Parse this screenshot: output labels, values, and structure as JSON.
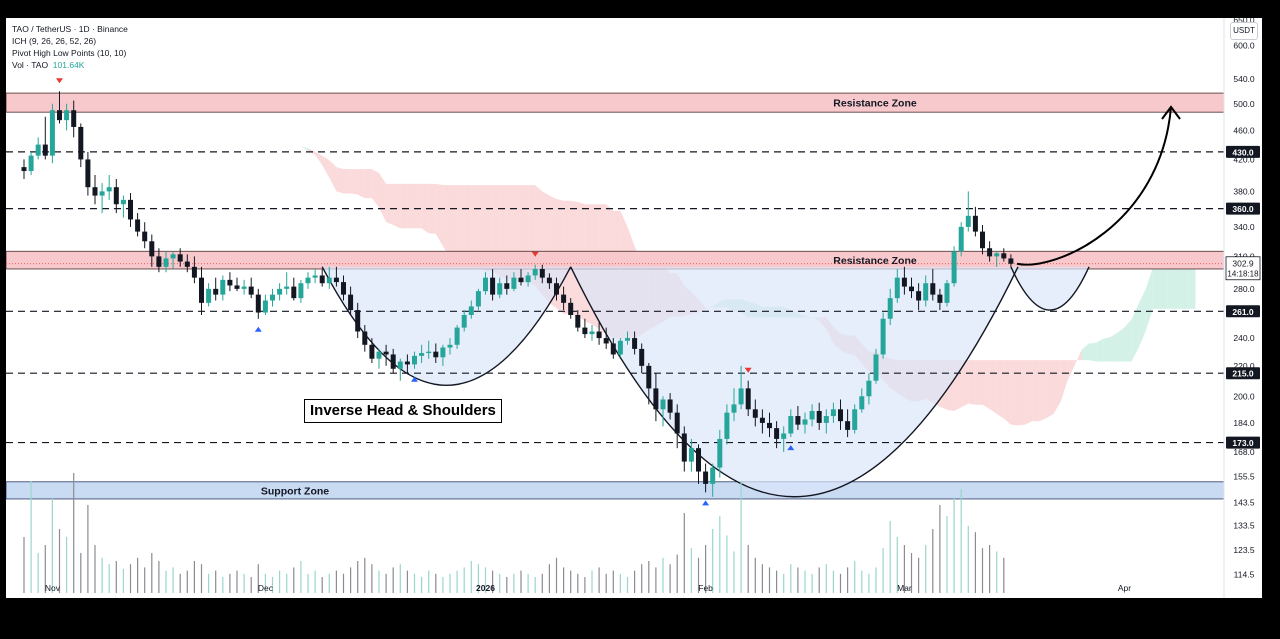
{
  "legend": {
    "line1": "TAO / TetherUS · 1D · Binance",
    "line2": "ICH (9, 26, 26, 52, 26)",
    "line3": "Pivot High Low Points (10, 10)",
    "vol_label": "Vol · TAO",
    "vol_value": "101.64K"
  },
  "currency": "USDT",
  "price_marker": {
    "value": "302.9",
    "countdown": "14:18:18"
  },
  "annotation_label": "Inverse Head & Shoulders",
  "colors": {
    "bull": "#26a69a",
    "bear": "#131722",
    "resistance_fill": "#f8c9cc",
    "support_fill": "#c9daf3",
    "pattern_fill": "#dbe6fa",
    "cloud_bull": "#cdeee4",
    "cloud_bear": "#f9d3d5",
    "pivot_up": "#2962ff",
    "pivot_down": "#e53935"
  },
  "chart_data": {
    "type": "candlestick",
    "y_scale": "log",
    "ylim": [
      108,
      650
    ],
    "y_ticks": [
      650.0,
      600.0,
      540.0,
      500.0,
      460.0,
      420.0,
      380.0,
      340.0,
      310.0,
      280.0,
      240.0,
      220.0,
      200.0,
      184.0,
      168.0,
      155.5,
      143.5,
      133.5,
      123.5,
      114.5
    ],
    "x_labels": [
      {
        "label": "Nov",
        "day": 4
      },
      {
        "label": "Dec",
        "day": 34
      },
      {
        "label": "2026",
        "day": 65
      },
      {
        "label": "Feb",
        "day": 96
      },
      {
        "label": "Mar",
        "day": 124
      },
      {
        "label": "Apr",
        "day": 155
      }
    ],
    "zones": [
      {
        "label": "Resistance Zone",
        "low": 487,
        "high": 517,
        "kind": "resistance"
      },
      {
        "label": "Resistance Zone",
        "low": 298,
        "high": 315,
        "kind": "resistance"
      },
      {
        "label": "Support Zone",
        "low": 145,
        "high": 153,
        "kind": "support"
      }
    ],
    "levels": [
      430.0,
      360.0,
      261.0,
      215.0,
      173.0
    ],
    "level_labels": [
      "430.0",
      "360.0",
      "261.0",
      "215.0",
      "173.0"
    ],
    "price_line": 302.9,
    "ohlc": [
      [
        410,
        420,
        395,
        405
      ],
      [
        405,
        430,
        400,
        425
      ],
      [
        425,
        450,
        420,
        440
      ],
      [
        440,
        480,
        420,
        425
      ],
      [
        425,
        500,
        415,
        490
      ],
      [
        490,
        520,
        470,
        475
      ],
      [
        475,
        500,
        460,
        490
      ],
      [
        490,
        505,
        450,
        465
      ],
      [
        465,
        470,
        410,
        420
      ],
      [
        420,
        430,
        375,
        385
      ],
      [
        385,
        400,
        365,
        375
      ],
      [
        375,
        390,
        355,
        380
      ],
      [
        380,
        400,
        370,
        385
      ],
      [
        385,
        395,
        355,
        365
      ],
      [
        365,
        375,
        350,
        370
      ],
      [
        370,
        378,
        340,
        348
      ],
      [
        348,
        355,
        330,
        335
      ],
      [
        335,
        345,
        318,
        325
      ],
      [
        325,
        332,
        300,
        310
      ],
      [
        310,
        318,
        295,
        300
      ],
      [
        300,
        315,
        295,
        308
      ],
      [
        308,
        315,
        298,
        312
      ],
      [
        312,
        318,
        300,
        305
      ],
      [
        305,
        312,
        295,
        300
      ],
      [
        300,
        310,
        285,
        290
      ],
      [
        290,
        300,
        258,
        268
      ],
      [
        268,
        285,
        265,
        280
      ],
      [
        280,
        290,
        270,
        275
      ],
      [
        275,
        292,
        270,
        288
      ],
      [
        288,
        295,
        278,
        283
      ],
      [
        283,
        290,
        278,
        280
      ],
      [
        280,
        288,
        275,
        282
      ],
      [
        282,
        290,
        272,
        275
      ],
      [
        275,
        280,
        255,
        260
      ],
      [
        260,
        275,
        258,
        270
      ],
      [
        270,
        280,
        265,
        275
      ],
      [
        275,
        285,
        270,
        280
      ],
      [
        280,
        295,
        275,
        282
      ],
      [
        282,
        290,
        270,
        272
      ],
      [
        272,
        288,
        268,
        285
      ],
      [
        285,
        295,
        280,
        290
      ],
      [
        290,
        298,
        285,
        292
      ],
      [
        292,
        298,
        282,
        285
      ],
      [
        285,
        300,
        280,
        290
      ],
      [
        290,
        300,
        282,
        286
      ],
      [
        286,
        292,
        270,
        275
      ],
      [
        275,
        282,
        258,
        262
      ],
      [
        262,
        268,
        240,
        245
      ],
      [
        245,
        250,
        230,
        235
      ],
      [
        235,
        240,
        222,
        225
      ],
      [
        225,
        232,
        218,
        230
      ],
      [
        230,
        235,
        220,
        228
      ],
      [
        228,
        232,
        215,
        218
      ],
      [
        218,
        225,
        210,
        223
      ],
      [
        223,
        228,
        215,
        221
      ],
      [
        221,
        230,
        218,
        227
      ],
      [
        227,
        235,
        222,
        229
      ],
      [
        229,
        238,
        225,
        230
      ],
      [
        230,
        236,
        222,
        226
      ],
      [
        226,
        235,
        220,
        233
      ],
      [
        233,
        240,
        228,
        235
      ],
      [
        235,
        250,
        232,
        248
      ],
      [
        248,
        262,
        245,
        258
      ],
      [
        258,
        270,
        255,
        265
      ],
      [
        265,
        280,
        262,
        278
      ],
      [
        278,
        295,
        275,
        290
      ],
      [
        290,
        298,
        270,
        275
      ],
      [
        275,
        290,
        272,
        285
      ],
      [
        285,
        292,
        275,
        280
      ],
      [
        280,
        295,
        278,
        290
      ],
      [
        290,
        298,
        283,
        286
      ],
      [
        286,
        295,
        282,
        292
      ],
      [
        292,
        302,
        288,
        298
      ],
      [
        298,
        302,
        285,
        290
      ],
      [
        290,
        294,
        280,
        285
      ],
      [
        285,
        290,
        270,
        275
      ],
      [
        275,
        282,
        262,
        268
      ],
      [
        268,
        272,
        255,
        258
      ],
      [
        258,
        262,
        245,
        248
      ],
      [
        248,
        255,
        240,
        243
      ],
      [
        243,
        250,
        238,
        245
      ],
      [
        245,
        252,
        235,
        240
      ],
      [
        240,
        248,
        232,
        236
      ],
      [
        236,
        240,
        225,
        228
      ],
      [
        228,
        240,
        226,
        238
      ],
      [
        238,
        245,
        235,
        240
      ],
      [
        240,
        245,
        228,
        232
      ],
      [
        232,
        236,
        215,
        220
      ],
      [
        220,
        222,
        195,
        205
      ],
      [
        205,
        215,
        185,
        192
      ],
      [
        192,
        200,
        182,
        198
      ],
      [
        198,
        202,
        186,
        190
      ],
      [
        190,
        195,
        170,
        178
      ],
      [
        178,
        182,
        158,
        163
      ],
      [
        163,
        175,
        158,
        170
      ],
      [
        170,
        172,
        152,
        158
      ],
      [
        158,
        162,
        148,
        152
      ],
      [
        152,
        162,
        146,
        160
      ],
      [
        160,
        180,
        155,
        175
      ],
      [
        175,
        195,
        172,
        190
      ],
      [
        190,
        205,
        185,
        195
      ],
      [
        195,
        220,
        192,
        205
      ],
      [
        205,
        210,
        188,
        192
      ],
      [
        192,
        198,
        182,
        187
      ],
      [
        187,
        192,
        178,
        184
      ],
      [
        184,
        190,
        176,
        181
      ],
      [
        181,
        185,
        170,
        175
      ],
      [
        175,
        182,
        168,
        178
      ],
      [
        178,
        192,
        176,
        188
      ],
      [
        188,
        194,
        180,
        183
      ],
      [
        183,
        190,
        178,
        186
      ],
      [
        186,
        195,
        182,
        191
      ],
      [
        191,
        196,
        180,
        184
      ],
      [
        184,
        192,
        178,
        188
      ],
      [
        188,
        196,
        184,
        192
      ],
      [
        192,
        198,
        180,
        185
      ],
      [
        185,
        192,
        176,
        180
      ],
      [
        180,
        195,
        178,
        192
      ],
      [
        192,
        205,
        190,
        200
      ],
      [
        200,
        215,
        195,
        210
      ],
      [
        210,
        232,
        208,
        228
      ],
      [
        228,
        260,
        225,
        255
      ],
      [
        255,
        280,
        250,
        272
      ],
      [
        272,
        298,
        268,
        290
      ],
      [
        290,
        300,
        275,
        282
      ],
      [
        282,
        290,
        272,
        278
      ],
      [
        278,
        285,
        262,
        270
      ],
      [
        270,
        292,
        265,
        285
      ],
      [
        285,
        298,
        270,
        275
      ],
      [
        275,
        280,
        262,
        268
      ],
      [
        268,
        288,
        265,
        285
      ],
      [
        285,
        320,
        282,
        315
      ],
      [
        315,
        345,
        310,
        340
      ],
      [
        340,
        380,
        335,
        352
      ],
      [
        352,
        362,
        330,
        335
      ],
      [
        335,
        342,
        312,
        318
      ],
      [
        318,
        325,
        305,
        310
      ],
      [
        310,
        315,
        300,
        313
      ],
      [
        313,
        318,
        305,
        308
      ],
      [
        308,
        312,
        300,
        302.9
      ]
    ],
    "volume": [
      35,
      70,
      25,
      30,
      60,
      40,
      35,
      75,
      25,
      55,
      30,
      22,
      18,
      20,
      15,
      18,
      22,
      16,
      25,
      20,
      14,
      16,
      12,
      14,
      20,
      18,
      12,
      14,
      10,
      12,
      14,
      12,
      10,
      18,
      12,
      10,
      14,
      12,
      16,
      20,
      12,
      14,
      10,
      12,
      14,
      12,
      16,
      20,
      22,
      18,
      14,
      12,
      16,
      18,
      14,
      12,
      10,
      14,
      12,
      10,
      12,
      14,
      16,
      20,
      18,
      16,
      14,
      12,
      10,
      12,
      14,
      12,
      10,
      12,
      18,
      22,
      16,
      14,
      12,
      10,
      14,
      16,
      12,
      14,
      12,
      10,
      14,
      18,
      20,
      16,
      22,
      18,
      24,
      50,
      28,
      22,
      30,
      40,
      48,
      36,
      26,
      70,
      30,
      22,
      18,
      16,
      14,
      12,
      18,
      16,
      14,
      12,
      16,
      18,
      14,
      12,
      16,
      20,
      14,
      12,
      16,
      28,
      45,
      35,
      30,
      25,
      22,
      30,
      40,
      55,
      48,
      60,
      65,
      42,
      38,
      28,
      30,
      26,
      22
    ],
    "pivots": [
      {
        "index": 5,
        "kind": "high"
      },
      {
        "index": 33,
        "kind": "low"
      },
      {
        "index": 55,
        "kind": "low"
      },
      {
        "index": 72,
        "kind": "high"
      },
      {
        "index": 96,
        "kind": "low"
      },
      {
        "index": 102,
        "kind": "high"
      },
      {
        "index": 108,
        "kind": "low"
      }
    ]
  }
}
